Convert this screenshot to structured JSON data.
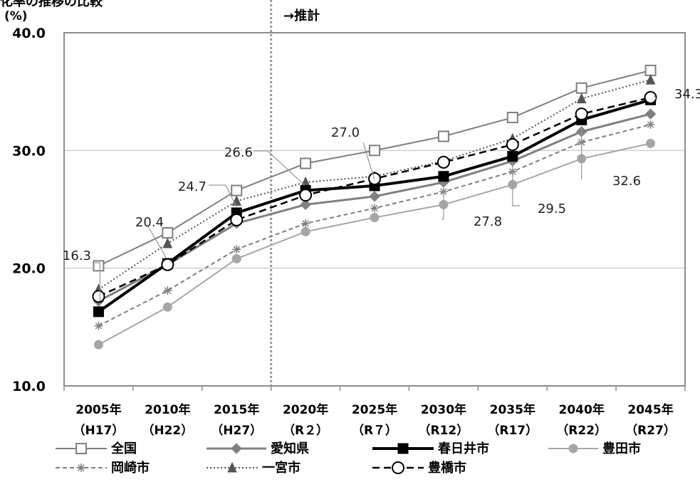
{
  "chart_data": {
    "type": "line",
    "title_fragment": "化率の推移の比較",
    "unit": "(%)",
    "projection_label": "→推計",
    "ylim": [
      10,
      40
    ],
    "y_ticks": [
      "10.0",
      "20.0",
      "30.0",
      "40.0"
    ],
    "categories": [
      {
        "year": "2005年",
        "era": "（H17）"
      },
      {
        "year": "2010年",
        "era": "（H22）"
      },
      {
        "year": "2015年",
        "era": "（H27）"
      },
      {
        "year": "2020年",
        "era": "（R２）"
      },
      {
        "year": "2025年",
        "era": "（R７）"
      },
      {
        "year": "2030年",
        "era": "（R12）"
      },
      {
        "year": "2035年",
        "era": "（R17）"
      },
      {
        "year": "2040年",
        "era": "（R22）"
      },
      {
        "year": "2045年",
        "era": "（R27）"
      }
    ],
    "grid": true,
    "series": [
      {
        "name": "全国",
        "color": "#7f7f7f",
        "marker": "square-open",
        "dash": "",
        "width": 2,
        "values": [
          20.2,
          23.0,
          26.6,
          28.9,
          30.0,
          31.2,
          32.8,
          35.3,
          36.8
        ]
      },
      {
        "name": "愛知県",
        "color": "#808080",
        "marker": "diamond",
        "dash": "",
        "width": 3,
        "values": [
          17.2,
          20.3,
          23.8,
          25.4,
          26.1,
          27.3,
          29.1,
          31.6,
          33.1
        ]
      },
      {
        "name": "春日井市",
        "color": "#000000",
        "marker": "square",
        "dash": "",
        "width": 4,
        "values": [
          16.3,
          20.4,
          24.7,
          26.6,
          27.0,
          27.8,
          29.5,
          32.6,
          34.3
        ]
      },
      {
        "name": "豊田市",
        "color": "#a6a6a6",
        "marker": "circle",
        "dash": "",
        "width": 2,
        "values": [
          13.5,
          16.7,
          20.8,
          23.1,
          24.3,
          25.4,
          27.1,
          29.3,
          30.6
        ]
      },
      {
        "name": "岡崎市",
        "color": "#7f7f7f",
        "marker": "star",
        "dash": "6,4",
        "width": 2,
        "values": [
          15.1,
          18.1,
          21.6,
          23.8,
          25.1,
          26.5,
          28.2,
          30.7,
          32.2
        ]
      },
      {
        "name": "一宮市",
        "color": "#555555",
        "marker": "triangle",
        "dash": "2,3",
        "width": 2,
        "values": [
          18.2,
          22.1,
          25.7,
          27.3,
          27.8,
          29.1,
          31.0,
          34.4,
          36.0
        ]
      },
      {
        "name": "豊橋市",
        "color": "#000000",
        "marker": "circle-open",
        "dash": "10,6",
        "width": 2.5,
        "values": [
          17.6,
          20.3,
          24.1,
          26.2,
          27.6,
          29.0,
          30.5,
          33.1,
          34.5
        ]
      }
    ],
    "annotations": [
      "16.3",
      "20.4",
      "24.7",
      "26.6",
      "27.0",
      "27.8",
      "29.5",
      "32.6",
      "34.3"
    ]
  }
}
